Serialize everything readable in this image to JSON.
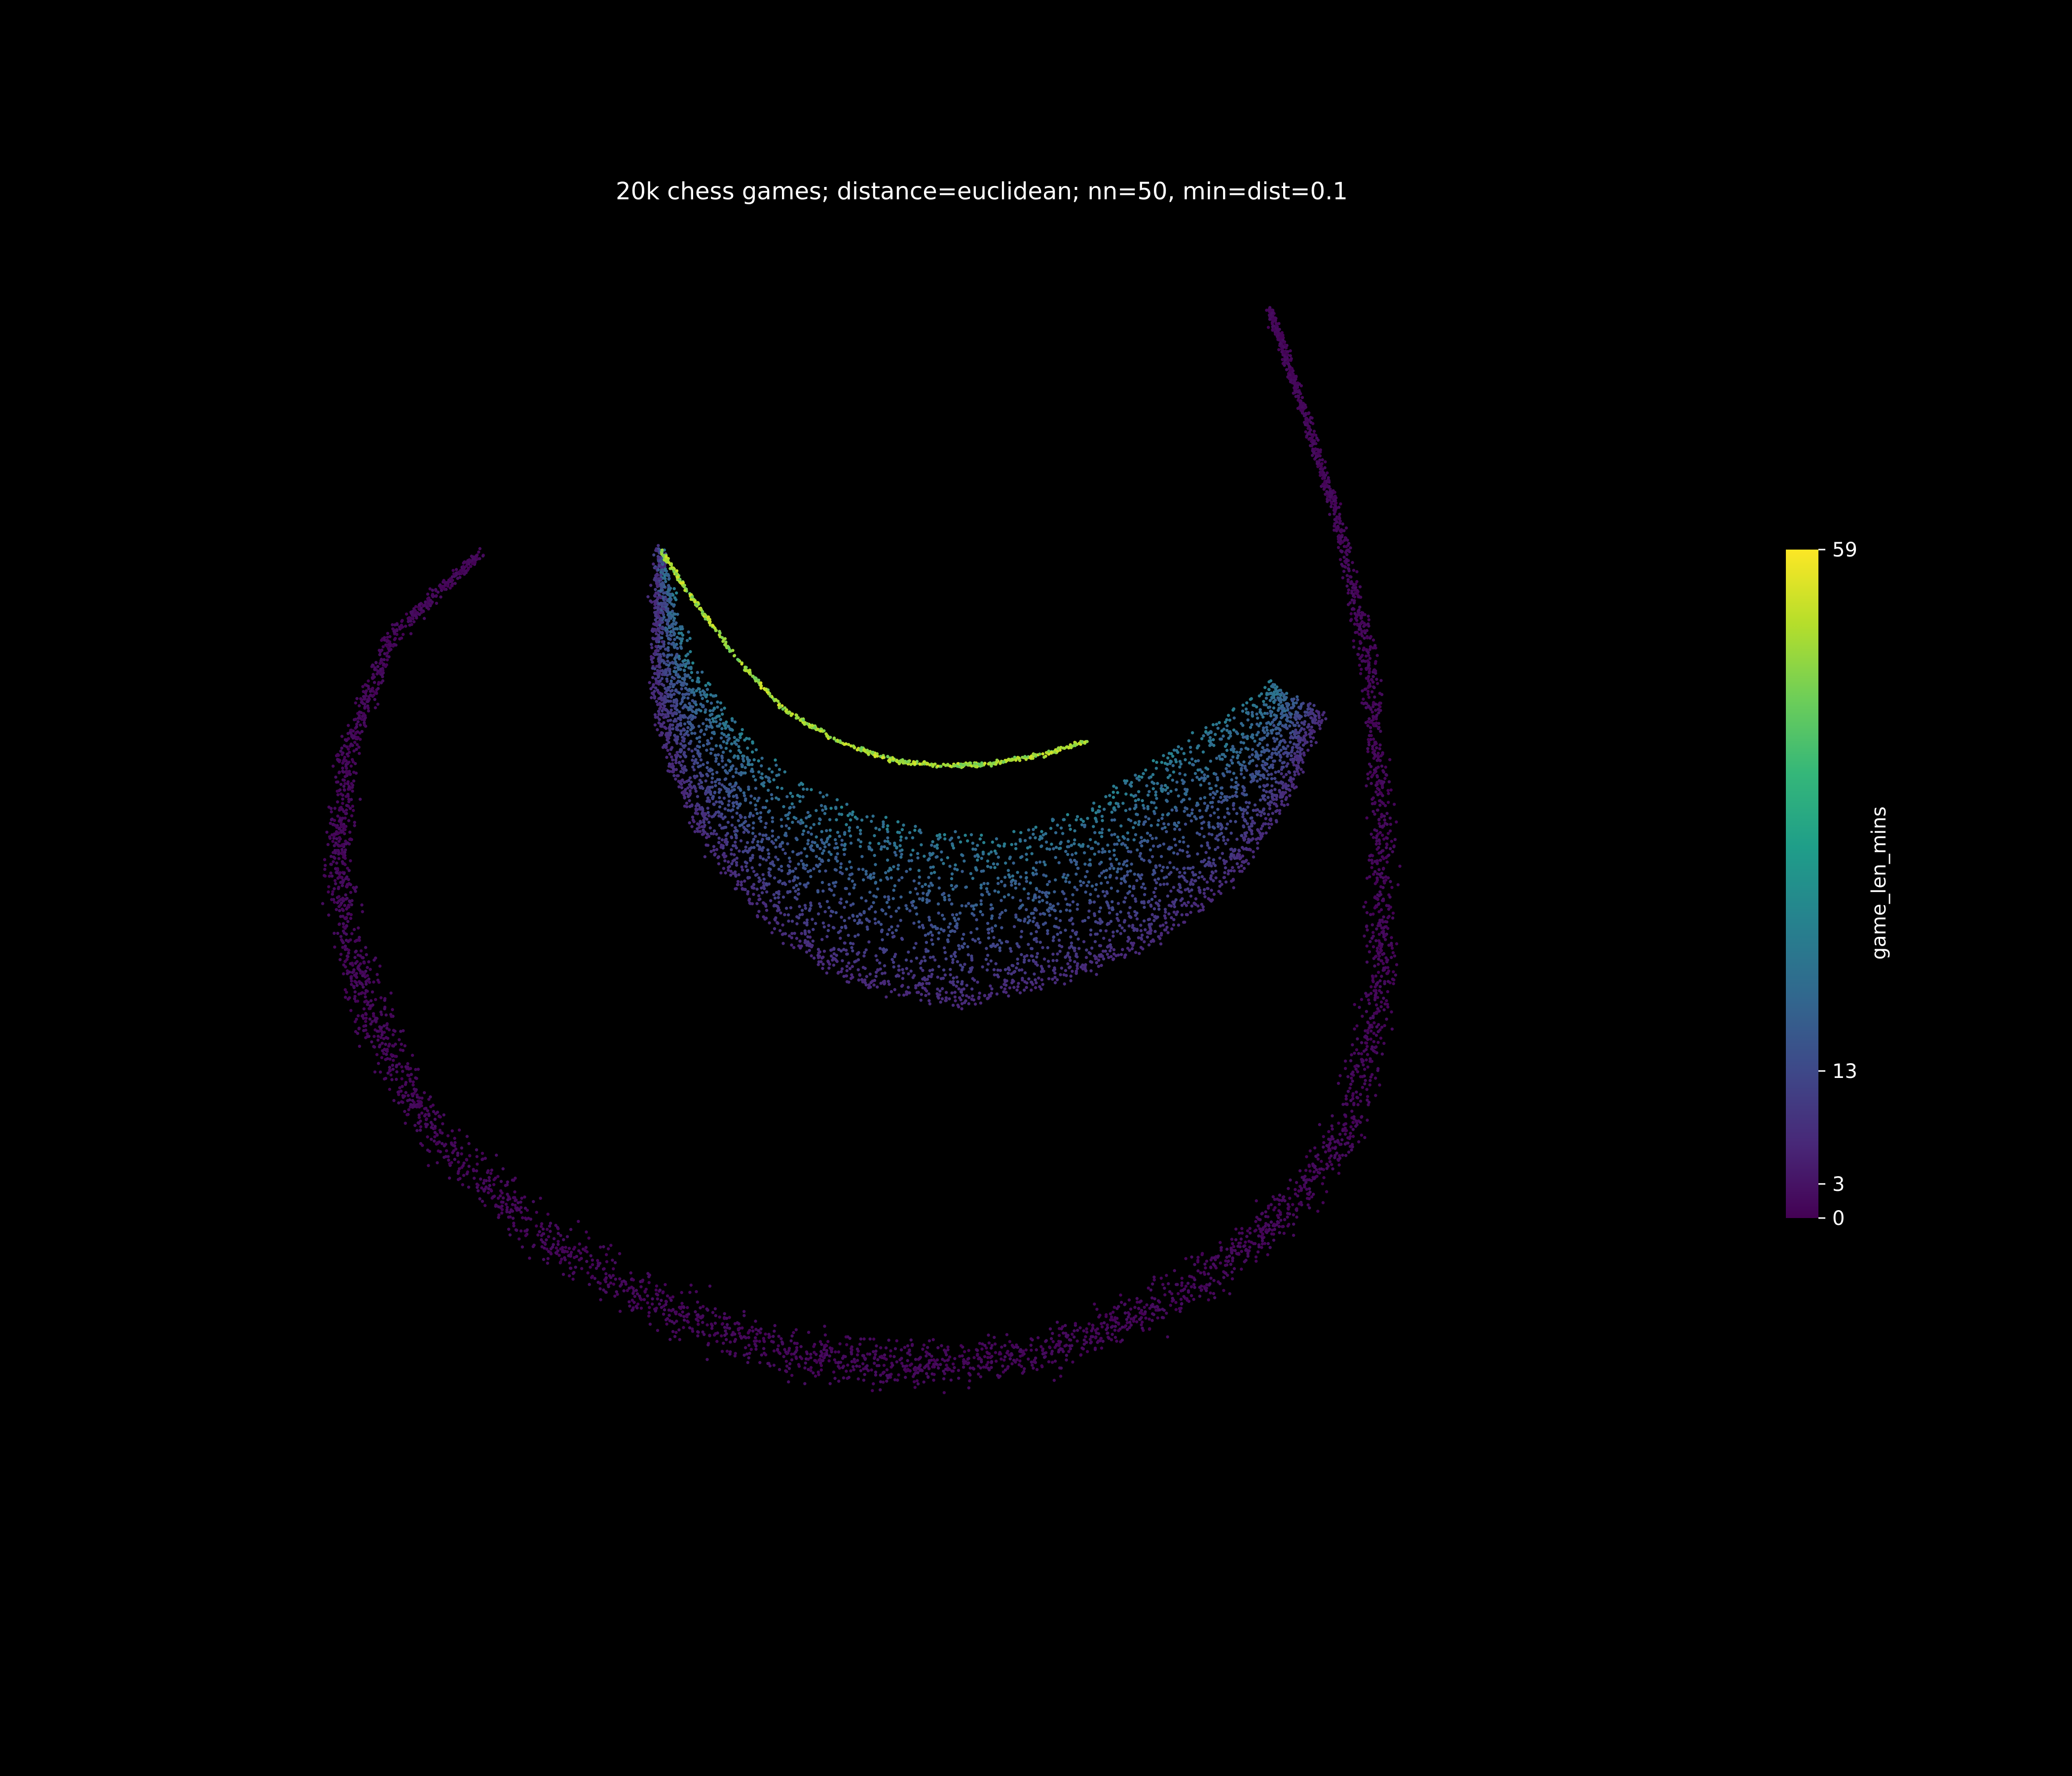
{
  "chart_data": {
    "type": "scatter",
    "title": "20k chess games; distance=euclidean; nn=50, min=dist=0.1",
    "xlabel": "",
    "ylabel": "",
    "axes_visible": false,
    "grid": false,
    "background": "#000000",
    "colormap": "viridis",
    "color_variable": "game_len_mins",
    "colorbar": {
      "label": "game_len_mins",
      "ticks": [
        0,
        3,
        13,
        59
      ],
      "tick_labels": [
        "0",
        "3",
        "13",
        "59"
      ],
      "range": [
        0,
        59
      ],
      "scale": "nonlinear (quantile-like)",
      "placement": "right"
    },
    "approx_points": 20000,
    "xlim": [
      0,
      100
    ],
    "ylim": [
      0,
      100
    ],
    "structures": [
      {
        "name": "outer-ring",
        "color_value_range": [
          0,
          3
        ],
        "path": [
          [
            12,
            77
          ],
          [
            5,
            70
          ],
          [
            1.5,
            60
          ],
          [
            1,
            50
          ],
          [
            3,
            40
          ],
          [
            8,
            30
          ],
          [
            17,
            21
          ],
          [
            27,
            15
          ],
          [
            36,
            11.5
          ],
          [
            45,
            11
          ],
          [
            55,
            12
          ],
          [
            64,
            16
          ],
          [
            72,
            22
          ],
          [
            78,
            30
          ],
          [
            80.5,
            42
          ],
          [
            80.5,
            55
          ],
          [
            79.5,
            68
          ],
          [
            77,
            80
          ],
          [
            74,
            90
          ],
          [
            72,
            96.5
          ]
        ]
      },
      {
        "name": "inner-band",
        "color_value_range": [
          3,
          30
        ],
        "bottom_path": [
          [
            25.5,
            77
          ],
          [
            24.8,
            67
          ],
          [
            26,
            60
          ],
          [
            29,
            53
          ],
          [
            34,
            46
          ],
          [
            40,
            42
          ],
          [
            48,
            40
          ],
          [
            56,
            42
          ],
          [
            63,
            45
          ],
          [
            69,
            50
          ],
          [
            73,
            56
          ],
          [
            76,
            64
          ]
        ],
        "top_path": [
          [
            25.5,
            77
          ],
          [
            28,
            68
          ],
          [
            31,
            63
          ],
          [
            35,
            59
          ],
          [
            40,
            56
          ],
          [
            46,
            54
          ],
          [
            52,
            54
          ],
          [
            58,
            56
          ],
          [
            63,
            60
          ],
          [
            68,
            63
          ],
          [
            72,
            66
          ]
        ]
      },
      {
        "name": "long-game-arc",
        "color_value_range": [
          45,
          56
        ],
        "path": [
          [
            25.5,
            77
          ],
          [
            28,
            73
          ],
          [
            31.5,
            68
          ],
          [
            35,
            64
          ],
          [
            39,
            61.5
          ],
          [
            43,
            60
          ],
          [
            47,
            59.5
          ],
          [
            51,
            59.7
          ],
          [
            55,
            60.5
          ],
          [
            58,
            61.5
          ]
        ]
      }
    ]
  }
}
